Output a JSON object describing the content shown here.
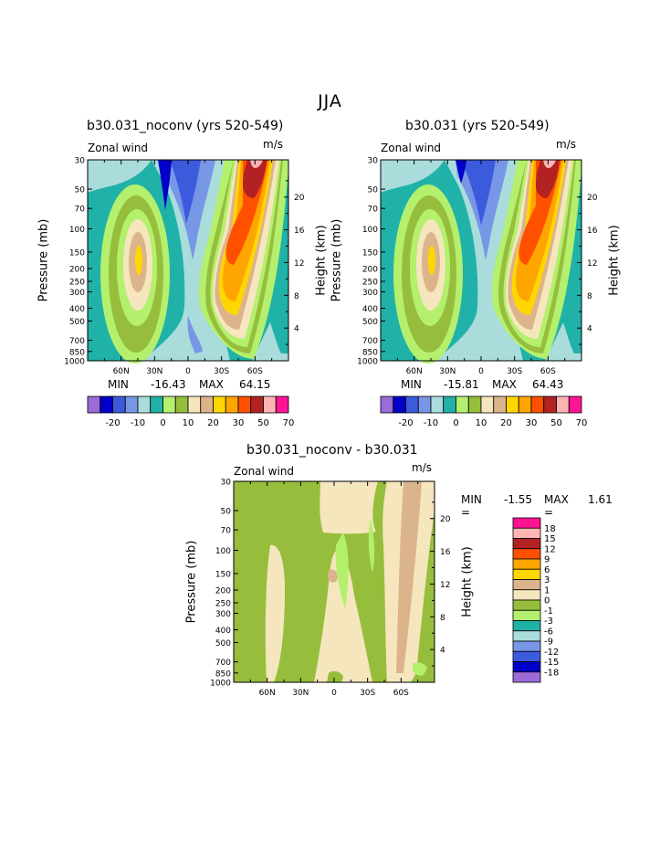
{
  "page_title": "JJA",
  "chart_data": [
    {
      "type": "heatmap",
      "id": "p1",
      "title": "b30.031_noconv (yrs 520-549)",
      "left_label": "Zonal wind",
      "right_label": "m/s",
      "ylabel": "Pressure (mb)",
      "y2label": "Height (km)",
      "pressure_ticks": [
        "30",
        "50",
        "70",
        "100",
        "150",
        "200",
        "250",
        "300",
        "400",
        "500",
        "700",
        "850",
        "1000"
      ],
      "height_ticks": [
        "20",
        "16",
        "12",
        "8",
        "4"
      ],
      "lat_ticks": [
        "60N",
        "30N",
        "0",
        "30S",
        "60S"
      ],
      "min_label": "MIN =",
      "min_value": "-16.43",
      "max_label": "MAX =",
      "max_value": "64.15",
      "colorbar_labels": [
        "-20",
        "-10",
        "0",
        "10",
        "20",
        "30",
        "50",
        "70"
      ],
      "levels": [
        -25,
        -20,
        -15,
        -10,
        -5,
        0,
        5,
        10,
        15,
        20,
        25,
        30,
        40,
        50,
        60,
        70
      ]
    },
    {
      "type": "heatmap",
      "id": "p2",
      "title": "b30.031 (yrs 520-549)",
      "left_label": "Zonal wind",
      "right_label": "m/s",
      "ylabel": "Pressure (mb)",
      "y2label": "Height (km)",
      "pressure_ticks": [
        "30",
        "50",
        "70",
        "100",
        "150",
        "200",
        "250",
        "300",
        "400",
        "500",
        "700",
        "850",
        "1000"
      ],
      "height_ticks": [
        "20",
        "16",
        "12",
        "8",
        "4"
      ],
      "lat_ticks": [
        "60N",
        "30N",
        "0",
        "30S",
        "60S"
      ],
      "min_label": "MIN =",
      "min_value": "-15.81",
      "max_label": "MAX =",
      "max_value": "64.43",
      "colorbar_labels": [
        "-20",
        "-10",
        "0",
        "10",
        "20",
        "30",
        "50",
        "70"
      ],
      "levels": [
        -25,
        -20,
        -15,
        -10,
        -5,
        0,
        5,
        10,
        15,
        20,
        25,
        30,
        40,
        50,
        60,
        70
      ]
    },
    {
      "type": "heatmap",
      "id": "p3",
      "title": "b30.031_noconv - b30.031",
      "left_label": "Zonal wind",
      "right_label": "m/s",
      "ylabel": "Pressure (mb)",
      "y2label": "Height (km)",
      "pressure_ticks": [
        "30",
        "50",
        "70",
        "100",
        "150",
        "200",
        "250",
        "300",
        "400",
        "500",
        "700",
        "850",
        "1000"
      ],
      "height_ticks": [
        "20",
        "16",
        "12",
        "8",
        "4"
      ],
      "lat_ticks": [
        "60N",
        "30N",
        "0",
        "30S",
        "60S"
      ],
      "min_label": "MIN =",
      "min_value": "-1.55",
      "max_label": "MAX =",
      "max_value": "1.61",
      "colorbar_labels": [
        "18",
        "15",
        "12",
        "9",
        "6",
        "3",
        "1",
        "0",
        "-1",
        "-3",
        "-6",
        "-9",
        "-12",
        "-15",
        "-18"
      ],
      "levels": [
        -18,
        -15,
        -12,
        -9,
        -6,
        -3,
        -1,
        0,
        1,
        3,
        6,
        9,
        12,
        15,
        18
      ]
    }
  ],
  "colors": {
    "palette16": [
      "#9b6bd8",
      "#0000c8",
      "#3c5adc",
      "#7896e6",
      "#aadcdc",
      "#20b2a8",
      "#b4f06e",
      "#96be3c",
      "#f5e6be",
      "#dcb48c",
      "#ffd700",
      "#ffa500",
      "#ff5000",
      "#b22222",
      "#ffb4b4",
      "#ff1493"
    ],
    "legend_diff": [
      "#ff1493",
      "#ffb4b4",
      "#b22222",
      "#ff5000",
      "#ffa500",
      "#ffd700",
      "#dcb48c",
      "#f5e6be",
      "#96be3c",
      "#b4f06e",
      "#20b2a8",
      "#aadcdc",
      "#7896e6",
      "#3c5adc",
      "#0000c8",
      "#9b6bd8"
    ]
  }
}
